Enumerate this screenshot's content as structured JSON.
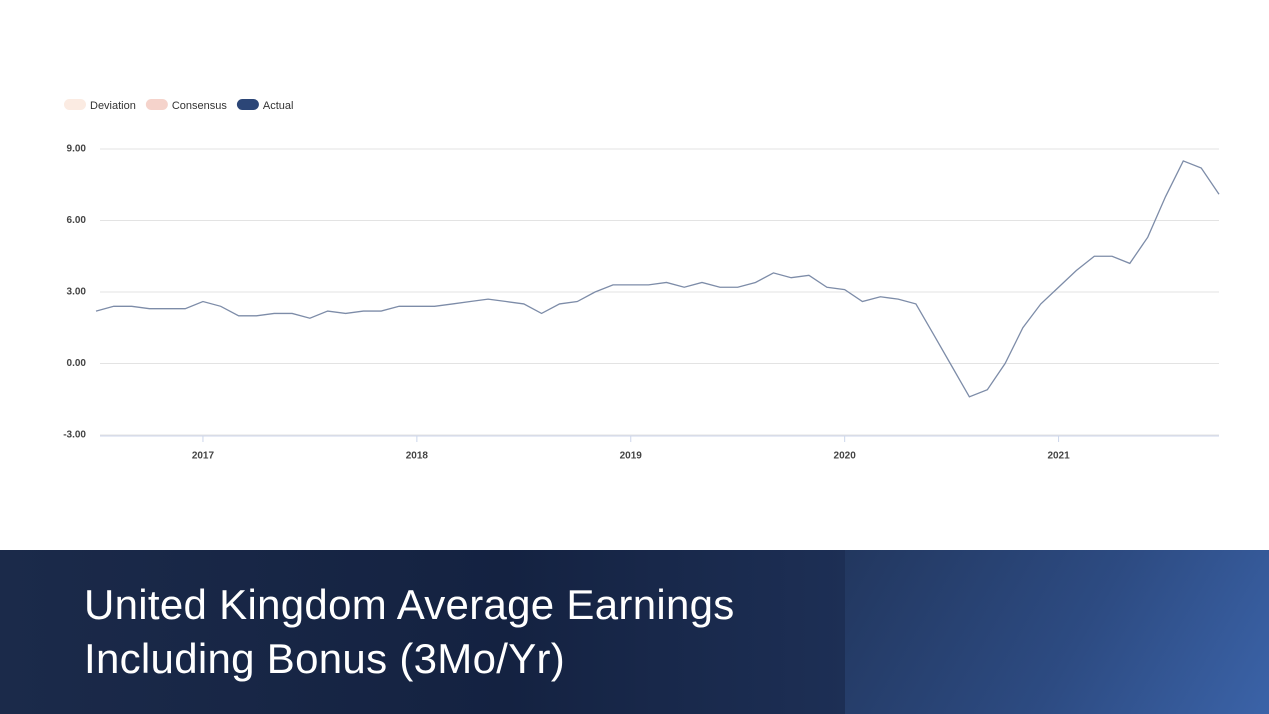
{
  "chart_data": {
    "type": "line",
    "title": "United Kingdom Average Earnings Including Bonus (3Mo/Yr)",
    "legend": [
      {
        "name": "Deviation",
        "color": "#fbebe2"
      },
      {
        "name": "Consensus",
        "color": "#f5d3cb"
      },
      {
        "name": "Actual",
        "color": "#2c4677"
      }
    ],
    "x": [
      2016.5,
      2016.583,
      2016.667,
      2016.75,
      2016.833,
      2016.917,
      2017,
      2017.083,
      2017.167,
      2017.25,
      2017.333,
      2017.417,
      2017.5,
      2017.583,
      2017.667,
      2017.75,
      2017.833,
      2017.917,
      2018,
      2018.083,
      2018.167,
      2018.25,
      2018.333,
      2018.417,
      2018.5,
      2018.583,
      2018.667,
      2018.75,
      2018.833,
      2018.917,
      2019,
      2019.083,
      2019.167,
      2019.25,
      2019.333,
      2019.417,
      2019.5,
      2019.583,
      2019.667,
      2019.75,
      2019.833,
      2019.917,
      2020,
      2020.083,
      2020.167,
      2020.25,
      2020.333,
      2020.417,
      2020.5,
      2020.583,
      2020.667,
      2020.75,
      2020.833,
      2020.917,
      2021,
      2021.083,
      2021.167,
      2021.25,
      2021.333,
      2021.417,
      2021.5,
      2021.583,
      2021.667,
      2021.75
    ],
    "series": [
      {
        "name": "Actual",
        "color": "#7d8ca8",
        "values": [
          2.2,
          2.4,
          2.4,
          2.3,
          2.3,
          2.3,
          2.6,
          2.4,
          2.0,
          2.0,
          2.1,
          2.1,
          1.9,
          2.2,
          2.1,
          2.2,
          2.2,
          2.4,
          2.4,
          2.4,
          2.5,
          2.6,
          2.7,
          2.6,
          2.5,
          2.1,
          2.5,
          2.6,
          3.0,
          3.3,
          3.3,
          3.3,
          3.4,
          3.2,
          3.4,
          3.2,
          3.2,
          3.4,
          3.8,
          3.6,
          3.7,
          3.2,
          3.1,
          2.6,
          2.8,
          2.7,
          2.5,
          1.2,
          -0.1,
          -1.4,
          -1.1,
          0.0,
          1.5,
          2.5,
          3.2,
          3.9,
          4.5,
          4.5,
          4.2,
          5.3,
          7.0,
          8.5,
          8.2,
          7.1
        ]
      }
    ],
    "xlim": [
      2016.5,
      2021.75
    ],
    "xticks": [
      2017,
      2018,
      2019,
      2020,
      2021
    ],
    "ylim": [
      -3,
      9
    ],
    "yticks": [
      {
        "value": 9,
        "label": "9.00"
      },
      {
        "value": 6,
        "label": "6.00"
      },
      {
        "value": 3,
        "label": "3.00"
      },
      {
        "value": 0,
        "label": "0.00"
      },
      {
        "value": -3,
        "label": "-3.00"
      }
    ],
    "grid": true
  }
}
